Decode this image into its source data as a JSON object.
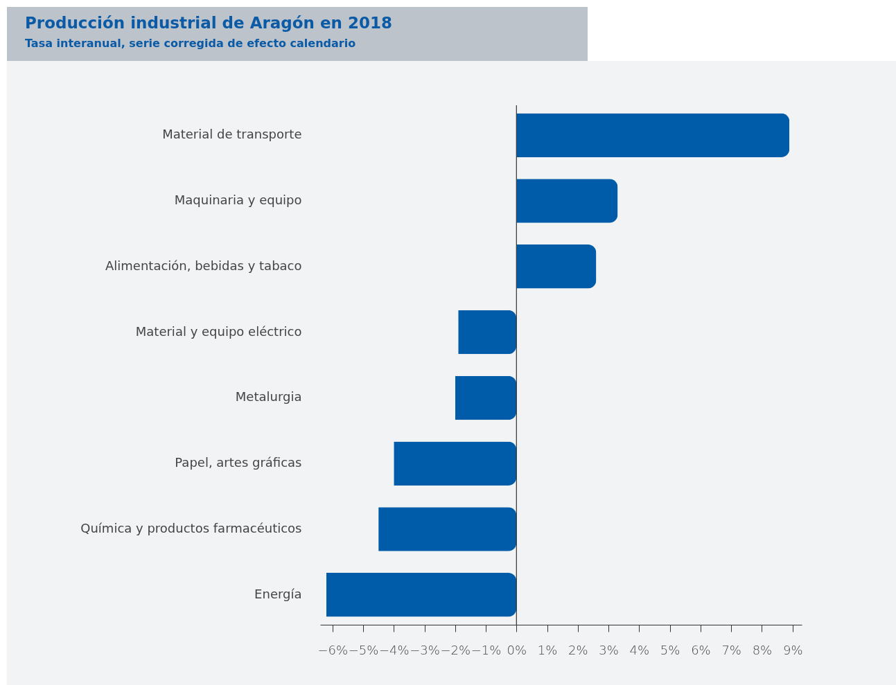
{
  "chart_data": {
    "type": "bar",
    "orientation": "horizontal",
    "title": "Producción industrial de Aragón en 2018",
    "subtitle": "Tasa interanual, serie corregida de efecto calendario",
    "categories": [
      "Material de transporte",
      "Maquinaria y equipo",
      "Alimentación, bebidas y tabaco",
      "Material y equipo eléctrico",
      "Metalurgia",
      "Papel, artes gráficas",
      "Química y productos farmacéuticos",
      "Energía"
    ],
    "values": [
      8.9,
      3.3,
      2.6,
      -1.9,
      -2.0,
      -4.0,
      -4.5,
      -6.2
    ],
    "color": "#005ba8",
    "xlim": [
      -6.4,
      9.3
    ],
    "xticks": [
      {
        "value": -6,
        "label": "−6%"
      },
      {
        "value": -5,
        "label": "−5%"
      },
      {
        "value": -4,
        "label": "−4%"
      },
      {
        "value": -3,
        "label": "−3%"
      },
      {
        "value": -2,
        "label": "−2%"
      },
      {
        "value": -1,
        "label": "−1%"
      },
      {
        "value": 0,
        "label": "0%"
      },
      {
        "value": 1,
        "label": "1%"
      },
      {
        "value": 2,
        "label": "2%"
      },
      {
        "value": 3,
        "label": "3%"
      },
      {
        "value": 4,
        "label": "4%"
      },
      {
        "value": 5,
        "label": "5%"
      },
      {
        "value": 6,
        "label": "6%"
      },
      {
        "value": 7,
        "label": "7%"
      },
      {
        "value": 8,
        "label": "8%"
      },
      {
        "value": 9,
        "label": "9%"
      }
    ],
    "ref_lines": [
      {
        "axis": "x",
        "value": 0,
        "color": "#333333"
      }
    ],
    "grid": false
  }
}
